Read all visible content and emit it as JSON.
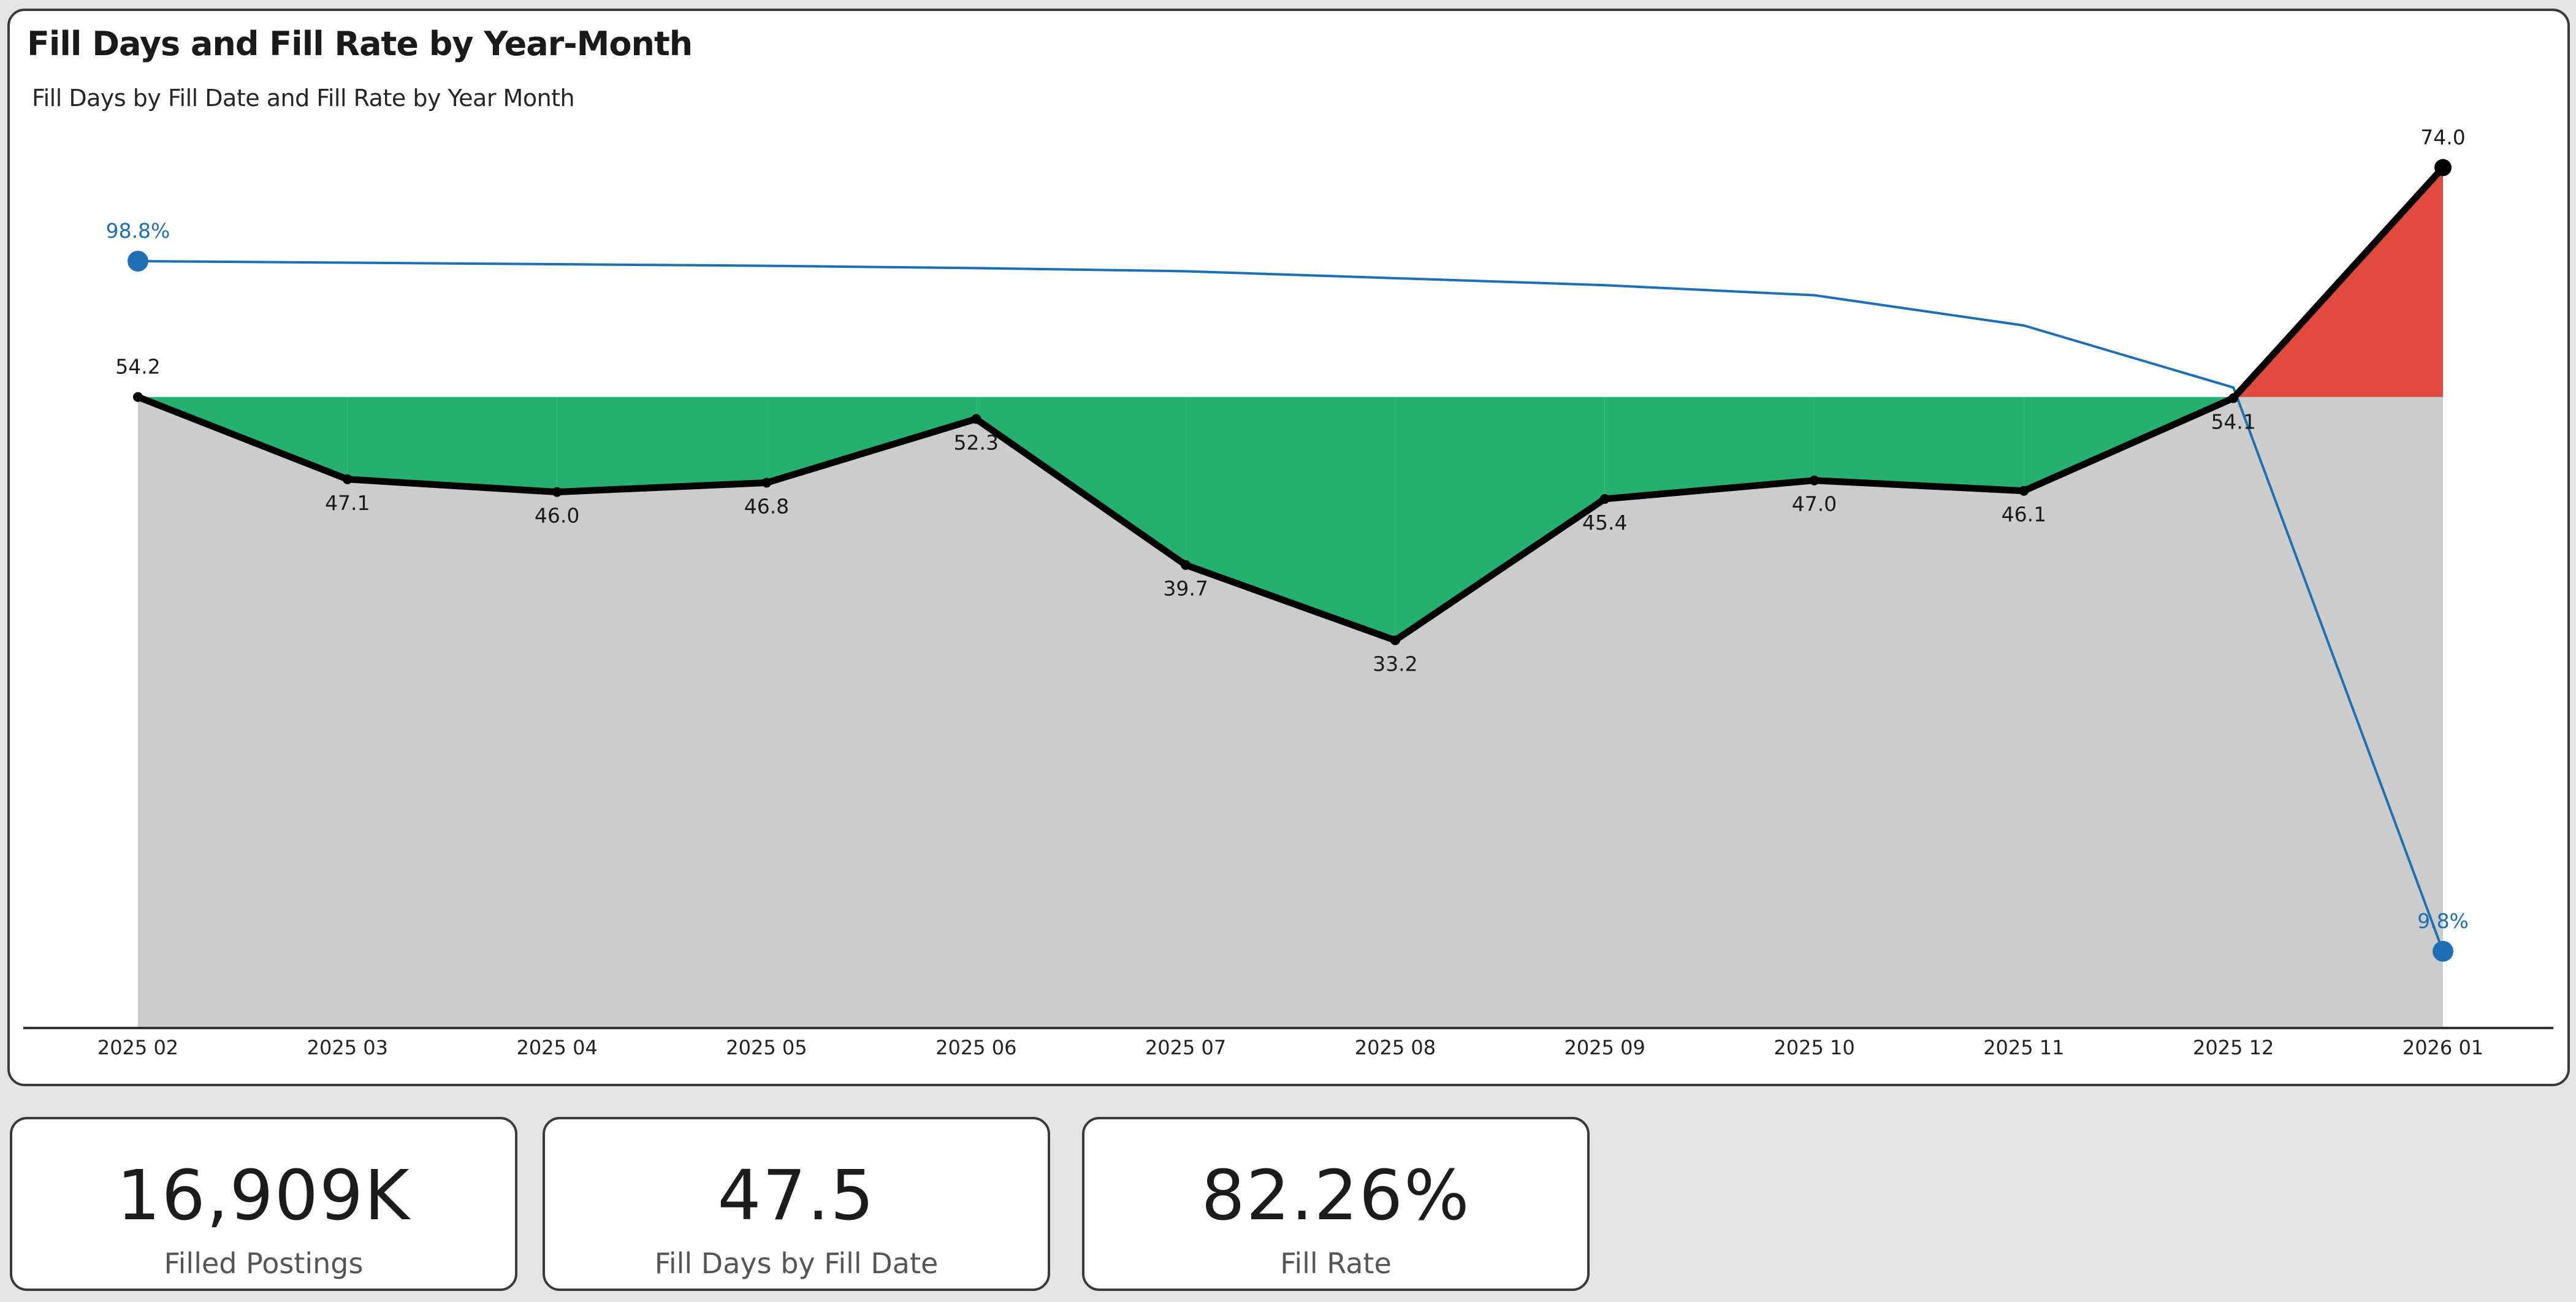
{
  "chart_card": {
    "title": "Fill Days and Fill Rate by Year-Month",
    "subtitle": "Fill Days by Fill Date and Fill Rate by Year Month"
  },
  "colors": {
    "fill_days_line": "#000000",
    "fill_rate_line": "#1f6fb5",
    "below_reference": "#25b06f",
    "above_reference": "#e04a3f",
    "area_base": "#cccccc",
    "page_background": "#e4e4e4"
  },
  "chart_data": {
    "type": "line",
    "title": "Fill Days and Fill Rate by Year-Month",
    "subtitle": "Fill Days by Fill Date and Fill Rate by Year Month",
    "xlabel": "",
    "ylabel": "",
    "categories": [
      "2025 02",
      "2025 03",
      "2025 04",
      "2025 05",
      "2025 06",
      "2025 07",
      "2025 08",
      "2025 09",
      "2025 10",
      "2025 11",
      "2025 12",
      "2026 01"
    ],
    "series": [
      {
        "name": "Fill Days by Fill Date",
        "type": "area-line",
        "values": [
          54.2,
          47.1,
          46.0,
          46.8,
          52.3,
          39.7,
          33.2,
          45.4,
          47.0,
          46.1,
          54.1,
          74.0
        ],
        "labels": [
          "54.2",
          "47.1",
          "46.0",
          "46.8",
          "52.3",
          "39.7",
          "33.2",
          "45.4",
          "47.0",
          "46.1",
          "54.1",
          "74.0"
        ],
        "reference_value": 54.2
      },
      {
        "name": "Fill Rate",
        "type": "line",
        "unit": "%",
        "values": [
          98.8,
          98.6,
          98.4,
          98.2,
          97.9,
          97.5,
          96.6,
          95.7,
          94.4,
          90.5,
          82.5,
          9.8
        ],
        "labels": {
          "first": "98.8%",
          "last": "9.8%"
        }
      }
    ],
    "grid": false,
    "legend": null
  },
  "kpis": [
    {
      "value": "16,909K",
      "label": "Filled Postings"
    },
    {
      "value": "47.5",
      "label": "Fill Days by Fill Date"
    },
    {
      "value": "82.26%",
      "label": "Fill Rate"
    }
  ]
}
